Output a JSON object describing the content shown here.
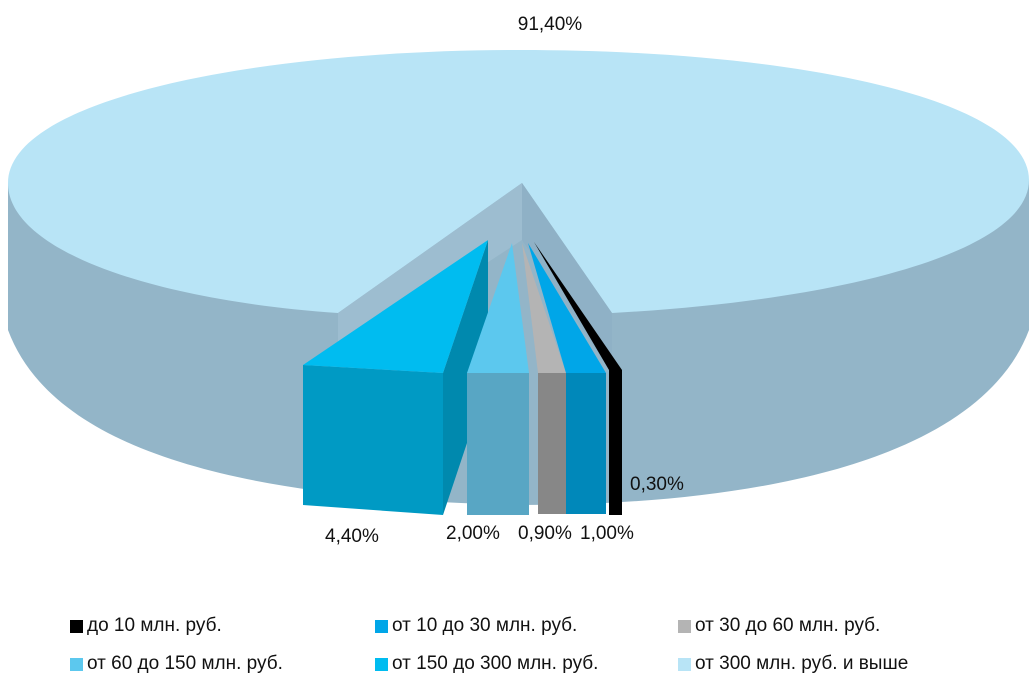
{
  "chart_data": {
    "type": "pie",
    "title": "",
    "categories": [
      "до 10 млн. руб.",
      "от 10 до 30 млн. руб.",
      "от 30 до 60 млн. руб.",
      "от 60 до 150 млн. руб.",
      "от 150 до 300 млн. руб.",
      "от 300 млн. руб. и выше"
    ],
    "values": [
      0.3,
      1.0,
      0.9,
      2.0,
      4.4,
      91.4
    ],
    "data_labels": [
      "0,30%",
      "1,00%",
      "0,90%",
      "2,00%",
      "4,40%",
      "91,40%"
    ],
    "colors": [
      "#000000",
      "#00A6E8",
      "#B4B4B4",
      "#5CC8EE",
      "#00BCF0",
      "#B8E4F6"
    ],
    "legend_position": "bottom",
    "style": "3d-exploded"
  },
  "legend": {
    "items": [
      {
        "label": "до 10 млн. руб.",
        "color": "#000000"
      },
      {
        "label": "от 10 до 30 млн. руб.",
        "color": "#00A6E8"
      },
      {
        "label": "от 30 до 60 млн. руб.",
        "color": "#B4B4B4"
      },
      {
        "label": "от 60 до 150 млн. руб.",
        "color": "#5CC8EE"
      },
      {
        "label": "от 150 до 300 млн. руб.",
        "color": "#00BCF0"
      },
      {
        "label": "от 300 млн. руб. и выше",
        "color": "#B8E4F6"
      }
    ]
  }
}
